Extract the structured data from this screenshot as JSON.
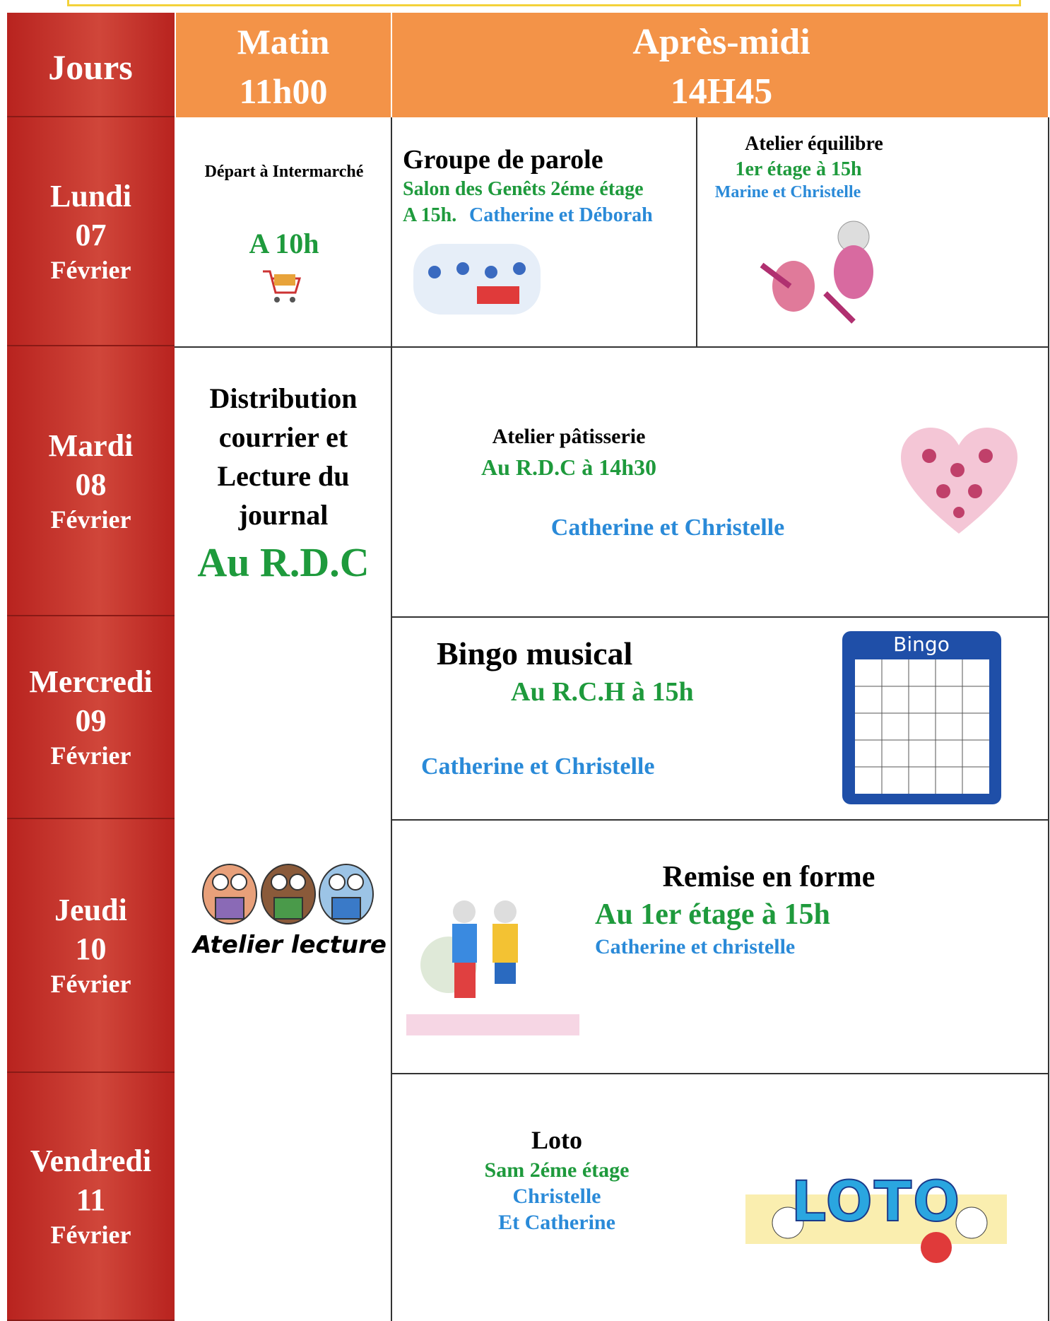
{
  "header": {
    "days": "Jours",
    "morning": {
      "title": "Matin",
      "time": "11h00"
    },
    "afternoon": {
      "title": "Après-midi",
      "time": "14H45"
    }
  },
  "rows": [
    {
      "day": "Lundi",
      "date": "07",
      "month": "Février"
    },
    {
      "day": "Mardi",
      "date": "08",
      "month": "Février"
    },
    {
      "day": "Mercredi",
      "date": "09",
      "month": "Février"
    },
    {
      "day": "Jeudi",
      "date": "10",
      "month": "Février"
    },
    {
      "day": "Vendredi",
      "date": "11",
      "month": "Février"
    }
  ],
  "morning": {
    "monday": {
      "title": "Départ à Intermarché",
      "time": "A 10h"
    },
    "rest": {
      "lines": [
        "Distribution",
        "courrier et",
        "Lecture du",
        "journal"
      ],
      "place": "Au R.D.C",
      "image_label": "Atelier lecture"
    }
  },
  "afternoon": {
    "monday_1": {
      "title": "Groupe de parole",
      "place": "Salon des Genêts 2éme étage",
      "time": "A 15h.",
      "staff": "Catherine et Déborah"
    },
    "monday_2": {
      "title": "Atelier équilibre",
      "place": "1er étage à 15h",
      "staff": "Marine et Christelle"
    },
    "tuesday": {
      "title": "Atelier pâtisserie",
      "place": "Au R.D.C à 14h30",
      "staff": "Catherine et Christelle"
    },
    "wednesday": {
      "title": "Bingo musical",
      "place": "Au R.C.H à 15h",
      "staff": "Catherine et Christelle",
      "image_label": "Bingo"
    },
    "thursday": {
      "title": "Remise en forme",
      "place": "Au 1er étage à 15h",
      "staff": "Catherine et christelle"
    },
    "friday": {
      "title": "Loto",
      "place": "Sam 2éme étage",
      "staff": [
        "Christelle",
        "Et Catherine"
      ],
      "image_label": "LOTO"
    }
  }
}
